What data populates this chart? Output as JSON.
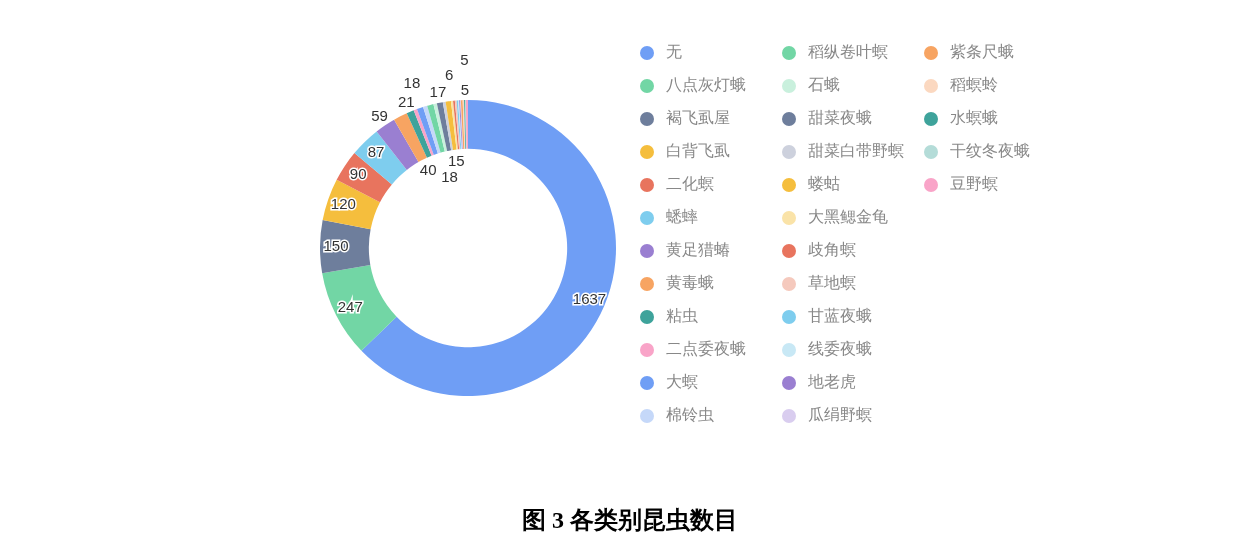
{
  "chart_data": {
    "type": "donut",
    "title": "图 3  各类别昆虫数目",
    "legend": "right",
    "categories": [
      "无",
      "八点灰灯蛾",
      "褐飞虱屋",
      "白背飞虱",
      "二化螟",
      "蟋蟀",
      "黄足猎蝽",
      "黄毒蛾",
      "粘虫",
      "二点委夜蛾",
      "大螟",
      "棉铃虫",
      "稻纵卷叶螟",
      "石蛾",
      "甜菜夜蛾",
      "甜菜白带野螟",
      "蝼蛄",
      "大黑鳃金龟",
      "歧角螟",
      "草地螟",
      "甘蓝夜蛾",
      "线委夜蛾",
      "地老虎",
      "瓜绢野螟",
      "紫条尺蛾",
      "稻螟蛉",
      "水螟蛾",
      "干纹冬夜蛾",
      "豆野螟"
    ],
    "values": [
      1637,
      247,
      150,
      120,
      90,
      87,
      59,
      40,
      21,
      10,
      18,
      12,
      18,
      10,
      17,
      8,
      15,
      6,
      5,
      5,
      4,
      3,
      3,
      2,
      5,
      4,
      3,
      2,
      6
    ],
    "value_labels": [
      "1637",
      "247",
      "150",
      "120",
      "90",
      "87",
      "59",
      "40",
      "21",
      null,
      "18",
      null,
      "18",
      null,
      "17",
      null,
      "15",
      "6",
      "5",
      "5",
      null,
      null,
      null,
      null,
      null,
      null,
      null,
      null,
      null
    ],
    "colors": [
      "#6f9ef5",
      "#72d6a5",
      "#6e7e9c",
      "#f5be3d",
      "#e8745e",
      "#7ecdee",
      "#9a7fd1",
      "#f7a462",
      "#3ea39b",
      "#f9a4c8",
      "#6f9ef5",
      "#c5d8f9",
      "#72d6a5",
      "#c9f0dd",
      "#6e7e9c",
      "#cdd1dd",
      "#f5be3d",
      "#fae3a8",
      "#e8745e",
      "#f5c9bd",
      "#7ecdee",
      "#c8e8f5",
      "#9a7fd1",
      "#d9cdef",
      "#f7a462",
      "#fbd8c0",
      "#3ea39b",
      "#b4dcd8",
      "#f9a4c8"
    ]
  }
}
